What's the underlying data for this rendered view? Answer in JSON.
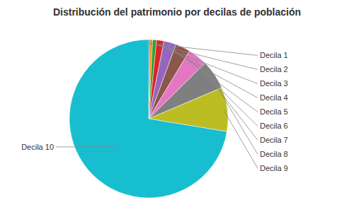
{
  "chart_data": {
    "type": "pie",
    "title": "Distribución del patrimonio por decilas de población",
    "categories": [
      "Decila 1",
      "Decila 2",
      "Decila 3",
      "Decila 4",
      "Decila 5",
      "Decila 6",
      "Decila 7",
      "Decila 8",
      "Decila 9",
      "Decila 10"
    ],
    "values": [
      0.3,
      0.5,
      0.8,
      1.5,
      2.5,
      3.0,
      4.0,
      6.0,
      9.0,
      72.4
    ]
  }
}
